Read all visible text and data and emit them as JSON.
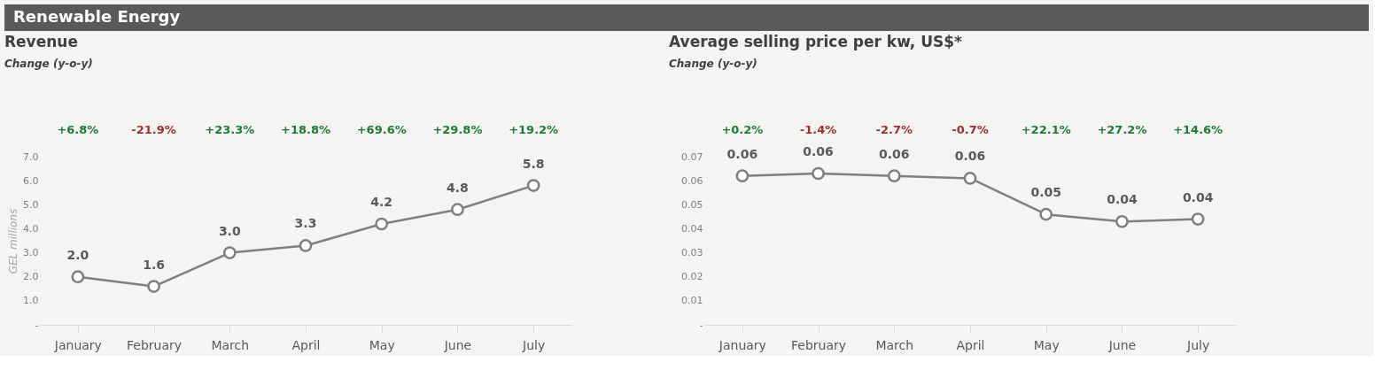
{
  "chart_data": [
    {
      "type": "other",
      "title": "Renewable Energy"
    },
    {
      "type": "line",
      "title": "Revenue",
      "subtitle": "Change (y-o-y)",
      "ylabel": "GEL millions",
      "categories": [
        "January",
        "February",
        "March",
        "April",
        "May",
        "June",
        "July"
      ],
      "series": [
        {
          "color": "#7f7f7f",
          "values": [
            2.0,
            1.6,
            3.0,
            3.3,
            4.2,
            4.8,
            5.8
          ],
          "value_labels": [
            "2.0",
            "1.6",
            "3.0",
            "3.3",
            "4.2",
            "4.8",
            "5.8"
          ]
        }
      ],
      "ylim": [
        0,
        7
      ],
      "yticks": [
        {
          "value": 0,
          "label": "-"
        },
        {
          "value": 1,
          "label": "1.0"
        },
        {
          "value": 2,
          "label": "2.0"
        },
        {
          "value": 3,
          "label": "3.0"
        },
        {
          "value": 4,
          "label": "4.0"
        },
        {
          "value": 5,
          "label": "5.0"
        },
        {
          "value": 6,
          "label": "6.0"
        },
        {
          "value": 7,
          "label": "7.0"
        }
      ],
      "marker": "circle",
      "grid": false,
      "annotations": [
        "+6.8%",
        "-21.9%",
        "+23.3%",
        "+18.8%",
        "+69.6%",
        "+29.8%",
        "+19.2%"
      ]
    },
    {
      "type": "line",
      "title": "Average selling price per kw, US$*",
      "subtitle": "Change (y-o-y)",
      "categories": [
        "January",
        "February",
        "March",
        "April",
        "May",
        "June",
        "July"
      ],
      "series": [
        {
          "color": "#7f7f7f",
          "values": [
            0.062,
            0.063,
            0.062,
            0.061,
            0.046,
            0.043,
            0.044
          ],
          "value_labels": [
            "0.06",
            "0.06",
            "0.06",
            "0.06",
            "0.05",
            "0.04",
            "0.04"
          ]
        }
      ],
      "ylim": [
        0,
        0.07
      ],
      "yticks": [
        {
          "value": 0,
          "label": "-"
        },
        0.01,
        0.02,
        0.03,
        0.04,
        0.05,
        0.06,
        0.07
      ],
      "marker": "circle",
      "grid": false,
      "annotations": [
        "+0.2%",
        "-1.4%",
        "-2.7%",
        "-0.7%",
        "+22.1%",
        "+27.2%",
        "+14.6%"
      ]
    }
  ]
}
